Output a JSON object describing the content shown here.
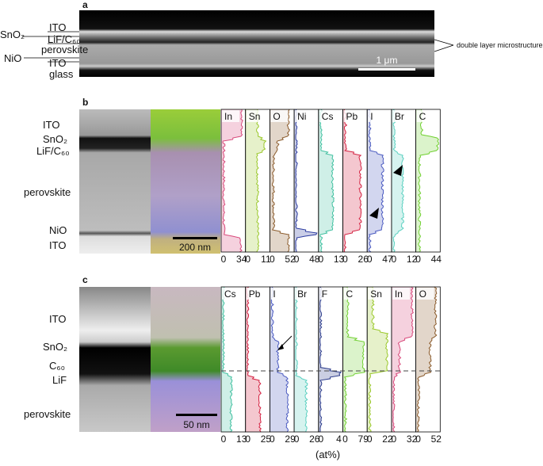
{
  "panel_a": {
    "label": "a",
    "layers": [
      "SnO₂",
      "ITO",
      "LiF/C₆₀",
      "perovskite",
      "NiO",
      "ITO",
      "glass"
    ],
    "annotation": "double layer microstructure",
    "scale_bar": "1 μm"
  },
  "panel_b": {
    "label": "b",
    "layers": [
      "ITO",
      "SnO₂",
      "LiF/C₆₀",
      "perovskite",
      "NiO",
      "ITO"
    ],
    "scale_bar": "200 nm",
    "profiles": [
      {
        "element": "In",
        "min": 0,
        "max": 34
      },
      {
        "element": "Sn",
        "min": 0,
        "max": 11
      },
      {
        "element": "O",
        "min": 0,
        "max": 52
      },
      {
        "element": "Ni",
        "min": 0,
        "max": 48
      },
      {
        "element": "Cs",
        "min": 0,
        "max": 13
      },
      {
        "element": "Pb",
        "min": 0,
        "max": 26
      },
      {
        "element": "I",
        "min": 0,
        "max": 47
      },
      {
        "element": "Br",
        "min": 0,
        "max": 12
      },
      {
        "element": "C",
        "min": 0,
        "max": 44
      }
    ]
  },
  "panel_c": {
    "label": "c",
    "layers": [
      "ITO",
      "SnO₂",
      "C₆₀",
      "LiF",
      "perovskite"
    ],
    "scale_bar": "50 nm",
    "profiles": [
      {
        "element": "Cs",
        "min": 0,
        "max": 13
      },
      {
        "element": "Pb",
        "min": 0,
        "max": 25
      },
      {
        "element": "I",
        "min": 0,
        "max": 29
      },
      {
        "element": "Br",
        "min": 0,
        "max": 26
      },
      {
        "element": "F",
        "min": 0,
        "max": 4
      },
      {
        "element": "C",
        "min": 0,
        "max": 79
      },
      {
        "element": "Sn",
        "min": 0,
        "max": 22
      },
      {
        "element": "In",
        "min": 0,
        "max": 32
      },
      {
        "element": "O",
        "min": 0,
        "max": 52
      }
    ]
  },
  "axis_unit": "(at%)"
}
